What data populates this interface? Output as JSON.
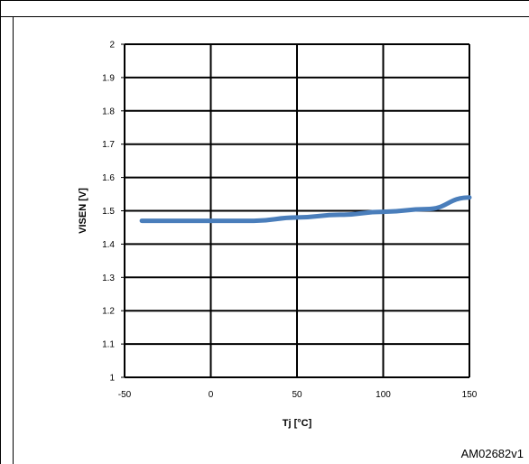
{
  "figure_id": "AM02682v1",
  "chart_data": {
    "type": "line",
    "title": "",
    "xlabel": "Tj [°C]",
    "ylabel": "VISEN [V]",
    "xlim": [
      -50,
      150
    ],
    "ylim": [
      1,
      2
    ],
    "x_ticks": [
      -50,
      0,
      50,
      100,
      150
    ],
    "y_ticks": [
      1,
      1.1,
      1.2,
      1.3,
      1.4,
      1.5,
      1.6,
      1.7,
      1.8,
      1.9,
      2
    ],
    "x_tick_labels": [
      "-50",
      "0",
      "50",
      "100",
      "150"
    ],
    "y_tick_labels": [
      "1",
      "1.1",
      "1.2",
      "1.3",
      "1.4",
      "1.5",
      "1.6",
      "1.7",
      "1.8",
      "1.9",
      "2"
    ],
    "grid": true,
    "legend": "none",
    "series": [
      {
        "color": "#4a7ebb",
        "x": [
          -40,
          -25,
          0,
          25,
          50,
          75,
          100,
          125,
          150
        ],
        "y": [
          1.47,
          1.47,
          1.47,
          1.47,
          1.48,
          1.488,
          1.497,
          1.505,
          1.54
        ]
      }
    ]
  }
}
